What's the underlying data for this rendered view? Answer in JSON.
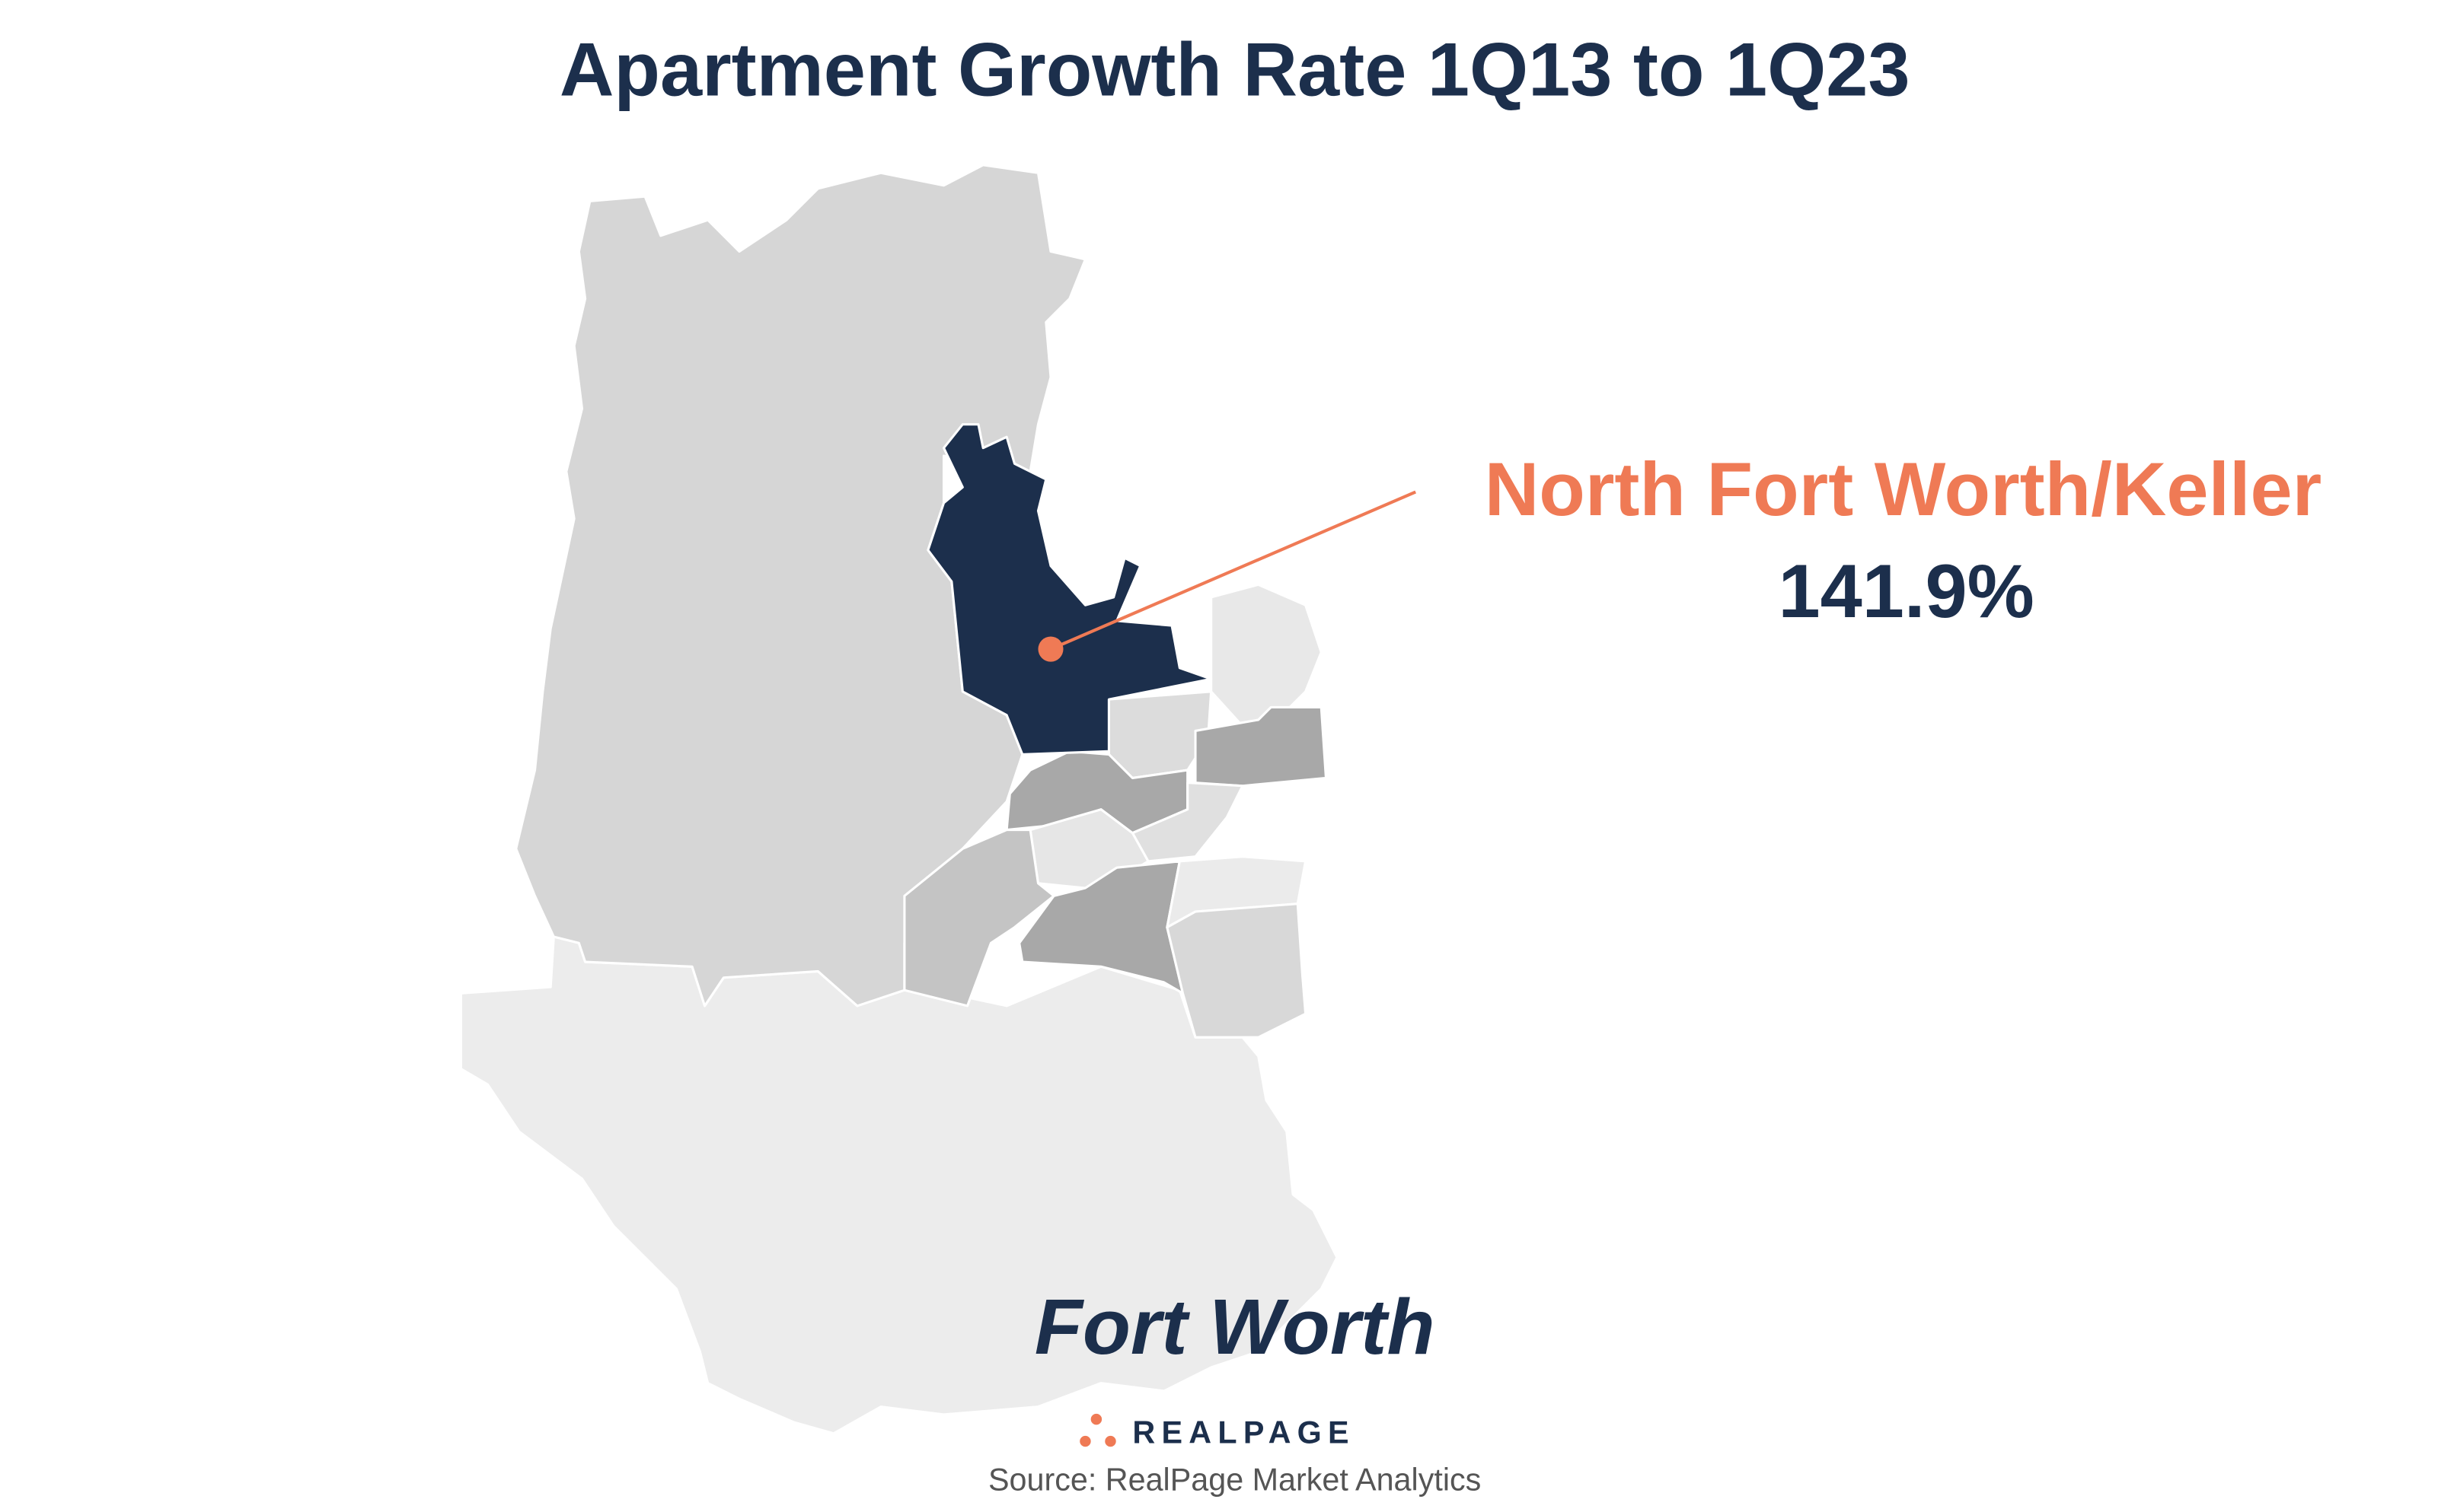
{
  "header": {
    "title": "Apartment Growth Rate 1Q13 to 1Q23"
  },
  "callout": {
    "region": "North Fort Worth/Keller",
    "value": "141.9%"
  },
  "map": {
    "city": "Fort Worth"
  },
  "footer": {
    "logo": "REALPAGE",
    "source": "Source: RealPage Market Analytics"
  }
}
